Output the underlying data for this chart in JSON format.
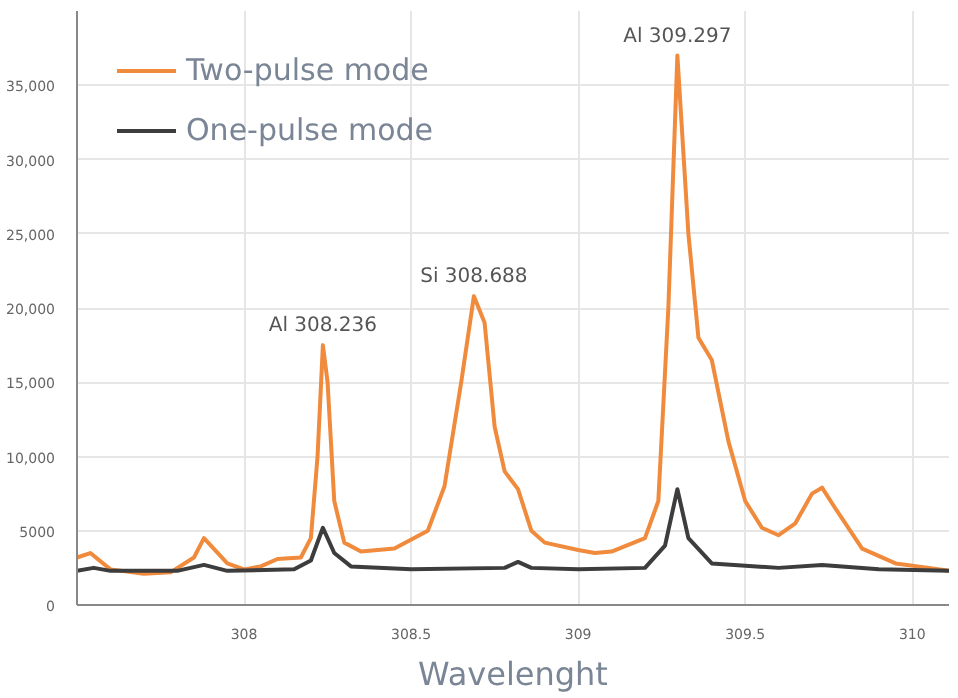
{
  "chart_data": {
    "type": "line",
    "xlabel": "Wavelenght",
    "xlim": [
      307.5,
      310.11
    ],
    "xticks": [
      308,
      308.5,
      309,
      309.5,
      310
    ],
    "ylim": [
      0,
      40000
    ],
    "yticks": [
      0,
      {
        "value": 5000,
        "label": "5000"
      },
      {
        "value": 10000,
        "label": "10,000"
      },
      {
        "value": 15000,
        "label": "15,000"
      },
      {
        "value": 20000,
        "label": "20,000"
      },
      {
        "value": 25000,
        "label": "25,000"
      },
      {
        "value": 30000,
        "label": "30,000"
      },
      {
        "value": 35000,
        "label": "35,000"
      }
    ],
    "grid": true,
    "legend": "top left",
    "line_style": "solid",
    "annotations": [
      {
        "text": "Al 308.236",
        "x": 308.236,
        "y": 17500
      },
      {
        "text": "Si 308.688",
        "x": 308.688,
        "y": 20800
      },
      {
        "text": "Al 309.297",
        "x": 309.297,
        "y": 37000
      }
    ],
    "series": [
      {
        "name": "Two-pulse mode",
        "color": "#f08a3c",
        "x": [
          307.5,
          307.54,
          307.6,
          307.7,
          307.78,
          307.85,
          307.88,
          307.95,
          308.0,
          308.05,
          308.1,
          308.17,
          308.2,
          308.22,
          308.236,
          308.25,
          308.27,
          308.3,
          308.35,
          308.45,
          308.55,
          308.6,
          308.65,
          308.688,
          308.72,
          308.75,
          308.78,
          308.82,
          308.86,
          308.9,
          309.0,
          309.05,
          309.1,
          309.2,
          309.24,
          309.27,
          309.297,
          309.33,
          309.36,
          309.4,
          309.45,
          309.5,
          309.55,
          309.6,
          309.65,
          309.7,
          309.73,
          309.77,
          309.85,
          309.95,
          310.05,
          310.11
        ],
        "values": [
          3200,
          3500,
          2400,
          2100,
          2200,
          3200,
          4500,
          2800,
          2400,
          2600,
          3100,
          3200,
          4500,
          10000,
          17500,
          15000,
          7000,
          4200,
          3600,
          3800,
          5000,
          8000,
          15000,
          20800,
          19000,
          12000,
          9000,
          7800,
          5000,
          4200,
          3700,
          3500,
          3600,
          4500,
          7000,
          20000,
          37000,
          25000,
          18000,
          16500,
          11000,
          7000,
          5200,
          4700,
          5500,
          7500,
          7900,
          6500,
          3800,
          2800,
          2500,
          2300
        ]
      },
      {
        "name": "One-pulse mode",
        "color": "#3d3d3d",
        "x": [
          307.5,
          307.55,
          307.6,
          307.8,
          307.88,
          307.95,
          308.15,
          308.2,
          308.236,
          308.27,
          308.32,
          308.5,
          308.78,
          308.82,
          308.86,
          309.0,
          309.2,
          309.26,
          309.297,
          309.33,
          309.4,
          309.6,
          309.73,
          309.9,
          310.11
        ],
        "values": [
          2300,
          2500,
          2300,
          2300,
          2700,
          2300,
          2400,
          3000,
          5200,
          3500,
          2600,
          2400,
          2500,
          2900,
          2500,
          2400,
          2500,
          4000,
          7800,
          4500,
          2800,
          2500,
          2700,
          2400,
          2300
        ]
      }
    ]
  }
}
